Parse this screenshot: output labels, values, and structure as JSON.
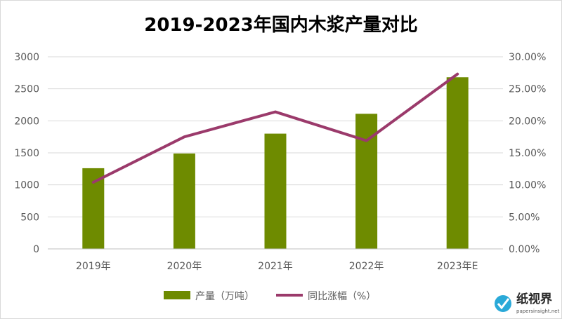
{
  "chart_data": {
    "type": "bar",
    "title": "2019-2023年国内木浆产量对比",
    "categories": [
      "2019年",
      "2020年",
      "2021年",
      "2022年",
      "2023年E"
    ],
    "series": [
      {
        "name": "产量（万吨）",
        "type": "bar",
        "axis": "left",
        "color": "#6e8b00",
        "values": [
          1260,
          1490,
          1800,
          2110,
          2680
        ]
      },
      {
        "name": "同比涨幅（%）",
        "type": "line",
        "axis": "right",
        "color": "#9b3a6b",
        "values": [
          10.4,
          17.5,
          21.4,
          16.9,
          27.3
        ]
      }
    ],
    "y_left": {
      "min": 0,
      "max": 3000,
      "step": 500,
      "ticks": [
        "0",
        "500",
        "1000",
        "1500",
        "2000",
        "2500",
        "3000"
      ]
    },
    "y_right": {
      "min": 0,
      "max": 30,
      "step": 5,
      "ticks": [
        "0.00%",
        "5.00%",
        "10.00%",
        "15.00%",
        "20.00%",
        "25.00%",
        "30.00%"
      ]
    },
    "grid": true,
    "legend_position": "bottom"
  },
  "watermark": {
    "brand": "纸视界",
    "site": "papersinsight.net"
  }
}
